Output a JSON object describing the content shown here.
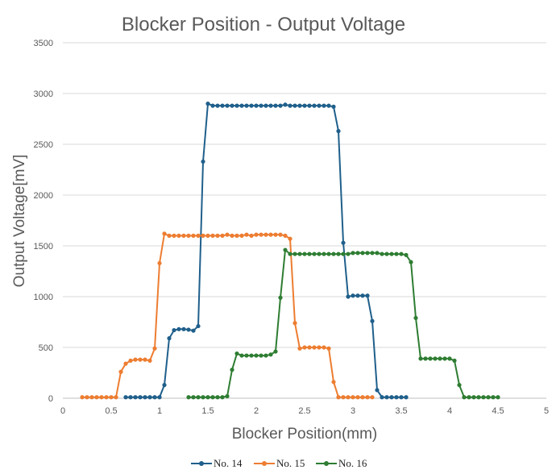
{
  "chart_data": {
    "type": "scatter",
    "title": "Blocker Position - Output Voltage",
    "xlabel": "Blocker Position(mm)",
    "ylabel": "Output Voltage[mV]",
    "xlim": [
      0,
      5
    ],
    "ylim": [
      0,
      3500
    ],
    "xticks": [
      "0",
      "0.5",
      "1",
      "1.5",
      "2",
      "2.5",
      "3",
      "3.5",
      "4",
      "4.5",
      "5"
    ],
    "yticks": [
      "0",
      "500",
      "1000",
      "1500",
      "2000",
      "2500",
      "3000",
      "3500"
    ],
    "grid": "horizontal",
    "legend": "bottom",
    "series": [
      {
        "name": "No. 14",
        "color": "#1f5f8b",
        "x": [
          0.65,
          0.7,
          0.75,
          0.8,
          0.85,
          0.9,
          0.95,
          1.0,
          1.05,
          1.1,
          1.15,
          1.2,
          1.25,
          1.3,
          1.35,
          1.4,
          1.45,
          1.5,
          1.55,
          1.6,
          1.65,
          1.7,
          1.75,
          1.8,
          1.85,
          1.9,
          1.95,
          2.0,
          2.05,
          2.1,
          2.15,
          2.2,
          2.25,
          2.3,
          2.35,
          2.4,
          2.45,
          2.5,
          2.55,
          2.6,
          2.65,
          2.7,
          2.75,
          2.8,
          2.85,
          2.9,
          2.95,
          3.0,
          3.05,
          3.1,
          3.15,
          3.2,
          3.25,
          3.3,
          3.35,
          3.4,
          3.45,
          3.5,
          3.55
        ],
        "y": [
          10,
          10,
          10,
          10,
          10,
          10,
          10,
          10,
          130,
          590,
          670,
          680,
          680,
          675,
          665,
          710,
          2330,
          2900,
          2880,
          2880,
          2880,
          2880,
          2880,
          2880,
          2880,
          2880,
          2880,
          2880,
          2880,
          2880,
          2880,
          2880,
          2880,
          2890,
          2880,
          2880,
          2880,
          2880,
          2880,
          2880,
          2880,
          2880,
          2880,
          2870,
          2630,
          1530,
          1000,
          1010,
          1010,
          1010,
          1010,
          760,
          80,
          10,
          10,
          10,
          10,
          10,
          10
        ]
      },
      {
        "name": "No. 15",
        "color": "#ed7d31",
        "x": [
          0.2,
          0.25,
          0.3,
          0.35,
          0.4,
          0.45,
          0.5,
          0.55,
          0.6,
          0.65,
          0.7,
          0.75,
          0.8,
          0.85,
          0.9,
          0.95,
          1.0,
          1.05,
          1.1,
          1.15,
          1.2,
          1.25,
          1.3,
          1.35,
          1.4,
          1.45,
          1.5,
          1.55,
          1.6,
          1.65,
          1.7,
          1.75,
          1.8,
          1.85,
          1.9,
          1.95,
          2.0,
          2.05,
          2.1,
          2.15,
          2.2,
          2.25,
          2.3,
          2.35,
          2.4,
          2.45,
          2.5,
          2.55,
          2.6,
          2.65,
          2.7,
          2.75,
          2.8,
          2.85,
          2.9,
          2.95,
          3.0,
          3.05,
          3.1,
          3.15,
          3.2
        ],
        "y": [
          10,
          10,
          10,
          10,
          10,
          10,
          10,
          10,
          260,
          340,
          370,
          380,
          380,
          380,
          370,
          490,
          1330,
          1620,
          1600,
          1600,
          1600,
          1600,
          1600,
          1600,
          1600,
          1600,
          1600,
          1600,
          1600,
          1600,
          1610,
          1600,
          1600,
          1600,
          1610,
          1600,
          1610,
          1610,
          1610,
          1610,
          1610,
          1610,
          1600,
          1570,
          740,
          490,
          500,
          500,
          500,
          500,
          500,
          490,
          160,
          10,
          10,
          10,
          10,
          10,
          10,
          10,
          10
        ]
      },
      {
        "name": "No. 16",
        "color": "#2e7d32",
        "x": [
          1.3,
          1.35,
          1.4,
          1.45,
          1.5,
          1.55,
          1.6,
          1.65,
          1.7,
          1.75,
          1.8,
          1.85,
          1.9,
          1.95,
          2.0,
          2.05,
          2.1,
          2.15,
          2.2,
          2.25,
          2.3,
          2.35,
          2.4,
          2.45,
          2.5,
          2.55,
          2.6,
          2.65,
          2.7,
          2.75,
          2.8,
          2.85,
          2.9,
          2.95,
          3.0,
          3.05,
          3.1,
          3.15,
          3.2,
          3.25,
          3.3,
          3.35,
          3.4,
          3.45,
          3.5,
          3.55,
          3.6,
          3.65,
          3.7,
          3.75,
          3.8,
          3.85,
          3.9,
          3.95,
          4.0,
          4.05,
          4.1,
          4.15,
          4.2,
          4.25,
          4.3,
          4.35,
          4.4,
          4.45,
          4.5
        ],
        "y": [
          10,
          10,
          10,
          10,
          10,
          10,
          10,
          10,
          20,
          280,
          440,
          420,
          420,
          420,
          420,
          420,
          420,
          430,
          460,
          990,
          1460,
          1420,
          1420,
          1420,
          1420,
          1420,
          1420,
          1420,
          1420,
          1420,
          1420,
          1420,
          1420,
          1420,
          1430,
          1430,
          1430,
          1430,
          1430,
          1430,
          1420,
          1420,
          1420,
          1420,
          1420,
          1410,
          1340,
          790,
          390,
          390,
          390,
          390,
          390,
          390,
          390,
          370,
          130,
          10,
          10,
          10,
          10,
          10,
          10,
          10,
          10
        ]
      }
    ]
  }
}
